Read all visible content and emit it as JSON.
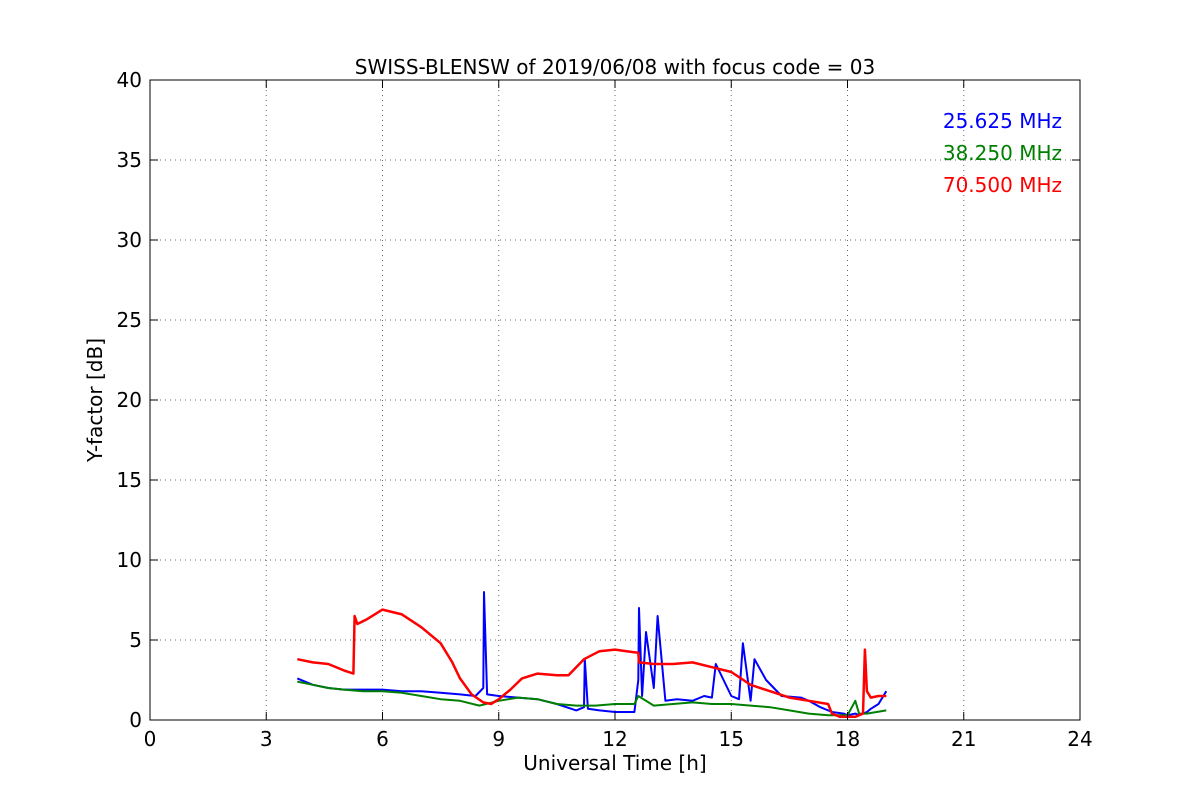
{
  "chart_data": {
    "type": "line",
    "title": "SWISS-BLENSW of 2019/06/08 with focus code = 03",
    "xlabel": "Universal Time [h]",
    "ylabel": "Y-factor [dB]",
    "xlim": [
      0,
      24
    ],
    "ylim": [
      0,
      40
    ],
    "xticks": [
      0,
      3,
      6,
      9,
      12,
      15,
      18,
      21,
      24
    ],
    "yticks": [
      0,
      5,
      10,
      15,
      20,
      25,
      30,
      35,
      40
    ],
    "grid": true,
    "legend_position": "top-right",
    "series": [
      {
        "name": "25.625 MHz",
        "color": "#0000ff",
        "x": [
          3.8,
          4.2,
          4.6,
          5.0,
          5.5,
          6.0,
          6.5,
          7.0,
          7.5,
          8.0,
          8.4,
          8.6,
          8.62,
          8.7,
          9.0,
          9.5,
          10.0,
          10.5,
          11.0,
          11.2,
          11.22,
          11.3,
          11.6,
          12.0,
          12.5,
          12.6,
          12.62,
          12.7,
          12.8,
          13.0,
          13.1,
          13.3,
          13.6,
          14.0,
          14.3,
          14.5,
          14.6,
          15.0,
          15.2,
          15.3,
          15.5,
          15.6,
          15.9,
          16.3,
          16.8,
          17.0,
          17.3,
          17.6,
          17.9,
          18.0,
          18.2,
          18.3,
          18.5,
          18.6,
          18.8,
          19.0
        ],
        "y": [
          2.6,
          2.2,
          2.0,
          1.9,
          1.9,
          1.9,
          1.8,
          1.8,
          1.7,
          1.6,
          1.5,
          2.0,
          8.0,
          1.6,
          1.5,
          1.4,
          1.3,
          1.0,
          0.6,
          0.8,
          3.8,
          0.7,
          0.6,
          0.5,
          0.5,
          2.5,
          7.0,
          1.5,
          5.5,
          2.0,
          6.5,
          1.2,
          1.3,
          1.2,
          1.5,
          1.4,
          3.5,
          1.5,
          1.3,
          4.8,
          1.2,
          3.8,
          2.5,
          1.5,
          1.4,
          1.2,
          0.8,
          0.5,
          0.4,
          0.3,
          0.4,
          0.3,
          0.5,
          0.7,
          1.0,
          1.8
        ]
      },
      {
        "name": "38.250 MHz",
        "color": "#008000",
        "x": [
          3.8,
          4.2,
          4.6,
          5.0,
          5.5,
          6.0,
          6.5,
          7.0,
          7.5,
          8.0,
          8.5,
          9.0,
          9.5,
          10.0,
          10.5,
          11.0,
          11.5,
          12.0,
          12.5,
          12.6,
          13.0,
          13.5,
          14.0,
          14.5,
          15.0,
          15.5,
          16.0,
          16.5,
          17.0,
          17.5,
          18.0,
          18.2,
          18.3,
          18.5,
          19.0
        ],
        "y": [
          2.4,
          2.2,
          2.0,
          1.9,
          1.8,
          1.8,
          1.7,
          1.5,
          1.3,
          1.2,
          0.9,
          1.2,
          1.4,
          1.3,
          1.0,
          0.9,
          0.9,
          1.0,
          1.0,
          1.5,
          0.9,
          1.0,
          1.1,
          1.0,
          1.0,
          0.9,
          0.8,
          0.6,
          0.4,
          0.3,
          0.3,
          1.2,
          0.4,
          0.4,
          0.6
        ]
      },
      {
        "name": "70.500 MHz",
        "color": "#ff0000",
        "x": [
          3.8,
          4.2,
          4.6,
          5.0,
          5.25,
          5.28,
          5.35,
          5.6,
          6.0,
          6.5,
          7.0,
          7.5,
          7.8,
          8.0,
          8.3,
          8.6,
          8.8,
          9.0,
          9.3,
          9.6,
          10.0,
          10.5,
          10.8,
          11.2,
          11.6,
          12.0,
          12.3,
          12.6,
          12.62,
          13.0,
          13.5,
          14.0,
          14.5,
          15.0,
          15.5,
          16.0,
          16.5,
          17.0,
          17.5,
          17.6,
          17.8,
          18.0,
          18.2,
          18.4,
          18.45,
          18.5,
          18.6,
          18.8,
          19.0
        ],
        "y": [
          3.8,
          3.6,
          3.5,
          3.1,
          2.9,
          6.5,
          6.0,
          6.3,
          6.9,
          6.6,
          5.8,
          4.8,
          3.6,
          2.6,
          1.6,
          1.1,
          1.0,
          1.3,
          1.9,
          2.6,
          2.9,
          2.8,
          2.8,
          3.8,
          4.3,
          4.4,
          4.3,
          4.2,
          3.6,
          3.5,
          3.5,
          3.6,
          3.3,
          3.0,
          2.2,
          1.8,
          1.4,
          1.2,
          1.0,
          0.4,
          0.2,
          0.2,
          0.2,
          0.4,
          4.4,
          1.8,
          1.4,
          1.5,
          1.5
        ]
      }
    ]
  }
}
